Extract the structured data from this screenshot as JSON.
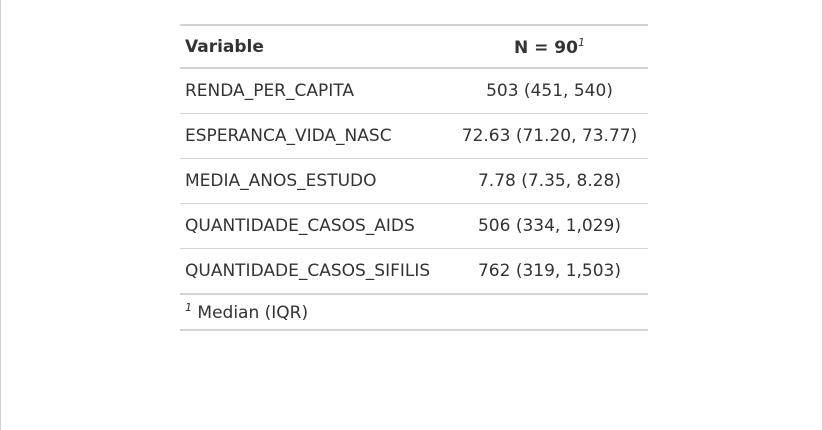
{
  "table": {
    "header": {
      "variable": "Variable",
      "n_label": "N = 90",
      "n_footnote_mark": "1"
    },
    "rows": [
      {
        "variable": "RENDA_PER_CAPITA",
        "value": "503 (451, 540)"
      },
      {
        "variable": "ESPERANCA_VIDA_NASC",
        "value": "72.63 (71.20, 73.77)"
      },
      {
        "variable": "MEDIA_ANOS_ESTUDO",
        "value": "7.78 (7.35, 8.28)"
      },
      {
        "variable": "QUANTIDADE_CASOS_AIDS",
        "value": "506 (334, 1,029)"
      },
      {
        "variable": "QUANTIDADE_CASOS_SIFILIS",
        "value": "762 (319, 1,503)"
      }
    ],
    "footnote": {
      "mark": "1",
      "text": "Median (IQR)"
    }
  }
}
